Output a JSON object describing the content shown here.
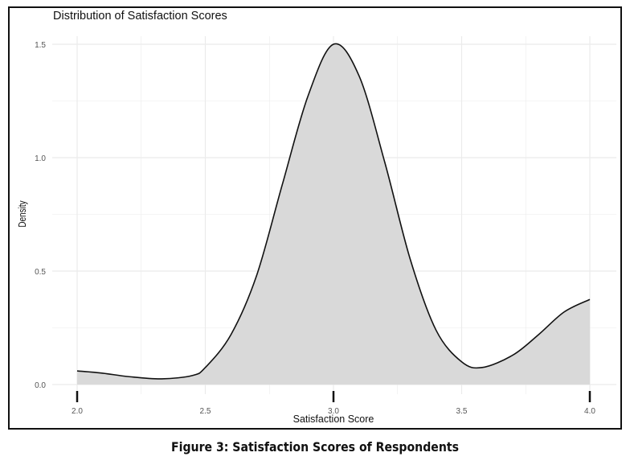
{
  "caption": "Figure 3: Satisfaction Scores of Respondents",
  "chart_data": {
    "type": "area",
    "title": "Distribution of Satisfaction Scores",
    "xlabel": "Satisfaction Score",
    "ylabel": "Density",
    "xlim": [
      2.0,
      4.0
    ],
    "ylim": [
      0,
      1.5
    ],
    "xticks": [
      "2.0",
      "2.5",
      "3.0",
      "3.5",
      "4.0"
    ],
    "yticks": [
      "0.0",
      "0.5",
      "1.0",
      "1.5"
    ],
    "grid": true,
    "rug": [
      2.0,
      3.0,
      4.0
    ],
    "fill_color": "#d9d9d9",
    "line_color": "#111111",
    "x": [
      2.0,
      2.1,
      2.2,
      2.33,
      2.45,
      2.5,
      2.6,
      2.7,
      2.8,
      2.9,
      3.0,
      3.1,
      3.2,
      3.3,
      3.4,
      3.5,
      3.58,
      3.7,
      3.8,
      3.9,
      4.0
    ],
    "y": [
      0.06,
      0.05,
      0.035,
      0.025,
      0.04,
      0.075,
      0.22,
      0.48,
      0.88,
      1.27,
      1.5,
      1.36,
      0.98,
      0.55,
      0.24,
      0.1,
      0.075,
      0.13,
      0.22,
      0.32,
      0.375
    ]
  }
}
